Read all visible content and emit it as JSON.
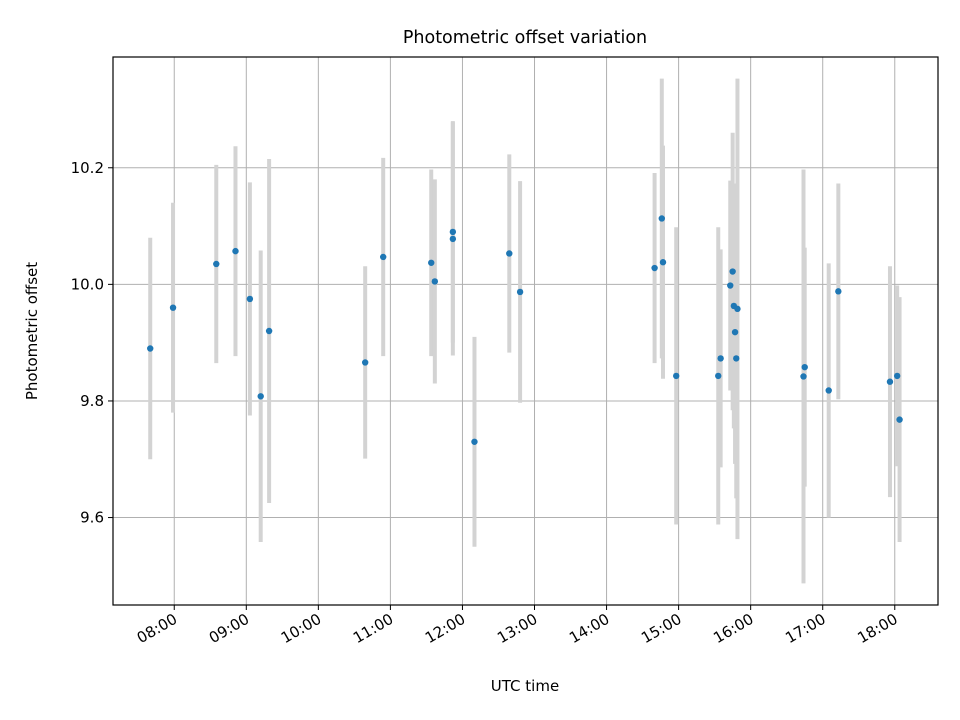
{
  "chart_data": {
    "type": "scatter",
    "title": "Photometric offset variation",
    "xlabel": "UTC time",
    "ylabel": "Photometric offset",
    "x_unit": "time (UTC)",
    "xlim": [
      "07:09",
      "18:36"
    ],
    "ylim": [
      9.45,
      10.39
    ],
    "grid": true,
    "x_ticks": [
      "08:00",
      "09:00",
      "10:00",
      "11:00",
      "12:00",
      "13:00",
      "14:00",
      "15:00",
      "16:00",
      "17:00",
      "18:00"
    ],
    "y_ticks": [
      "9.6",
      "9.8",
      "10.0",
      "10.2"
    ],
    "colors": {
      "points": "#1f77b4",
      "error_bars": "#d3d3d3",
      "grid": "#b0b0b0"
    },
    "points": [
      {
        "x": "07:40",
        "y": 9.89,
        "err": 0.19
      },
      {
        "x": "07:59",
        "y": 9.96,
        "err": 0.18
      },
      {
        "x": "08:35",
        "y": 10.035,
        "err": 0.17
      },
      {
        "x": "08:51",
        "y": 10.057,
        "err": 0.18
      },
      {
        "x": "09:03",
        "y": 9.975,
        "err": 0.2
      },
      {
        "x": "09:12",
        "y": 9.808,
        "err": 0.25
      },
      {
        "x": "09:19",
        "y": 9.92,
        "err": 0.295
      },
      {
        "x": "10:39",
        "y": 9.866,
        "err": 0.165
      },
      {
        "x": "10:54",
        "y": 10.047,
        "err": 0.17
      },
      {
        "x": "11:34",
        "y": 10.037,
        "err": 0.16
      },
      {
        "x": "11:37",
        "y": 10.005,
        "err": 0.175
      },
      {
        "x": "11:52",
        "y": 10.09,
        "err": 0.19
      },
      {
        "x": "11:52",
        "y": 10.078,
        "err": 0.2
      },
      {
        "x": "12:10",
        "y": 9.73,
        "err": 0.18
      },
      {
        "x": "12:39",
        "y": 10.053,
        "err": 0.17
      },
      {
        "x": "12:48",
        "y": 9.987,
        "err": 0.19
      },
      {
        "x": "14:40",
        "y": 10.028,
        "err": 0.163
      },
      {
        "x": "14:46",
        "y": 10.113,
        "err": 0.24
      },
      {
        "x": "14:47",
        "y": 10.038,
        "err": 0.2
      },
      {
        "x": "14:58",
        "y": 9.843,
        "err": 0.255
      },
      {
        "x": "15:33",
        "y": 9.843,
        "err": 0.255
      },
      {
        "x": "15:35",
        "y": 9.873,
        "err": 0.187
      },
      {
        "x": "15:43",
        "y": 9.998,
        "err": 0.18
      },
      {
        "x": "15:45",
        "y": 10.022,
        "err": 0.238
      },
      {
        "x": "15:46",
        "y": 9.963,
        "err": 0.21
      },
      {
        "x": "15:47",
        "y": 9.918,
        "err": 0.226
      },
      {
        "x": "15:48",
        "y": 9.873,
        "err": 0.24
      },
      {
        "x": "15:49",
        "y": 9.958,
        "err": 0.395
      },
      {
        "x": "16:44",
        "y": 9.842,
        "err": 0.355
      },
      {
        "x": "16:45",
        "y": 9.858,
        "err": 0.205
      },
      {
        "x": "17:05",
        "y": 9.818,
        "err": 0.218
      },
      {
        "x": "17:13",
        "y": 9.988,
        "err": 0.185
      },
      {
        "x": "17:56",
        "y": 9.833,
        "err": 0.198
      },
      {
        "x": "18:02",
        "y": 9.843,
        "err": 0.155
      },
      {
        "x": "18:04",
        "y": 9.768,
        "err": 0.21
      }
    ]
  }
}
